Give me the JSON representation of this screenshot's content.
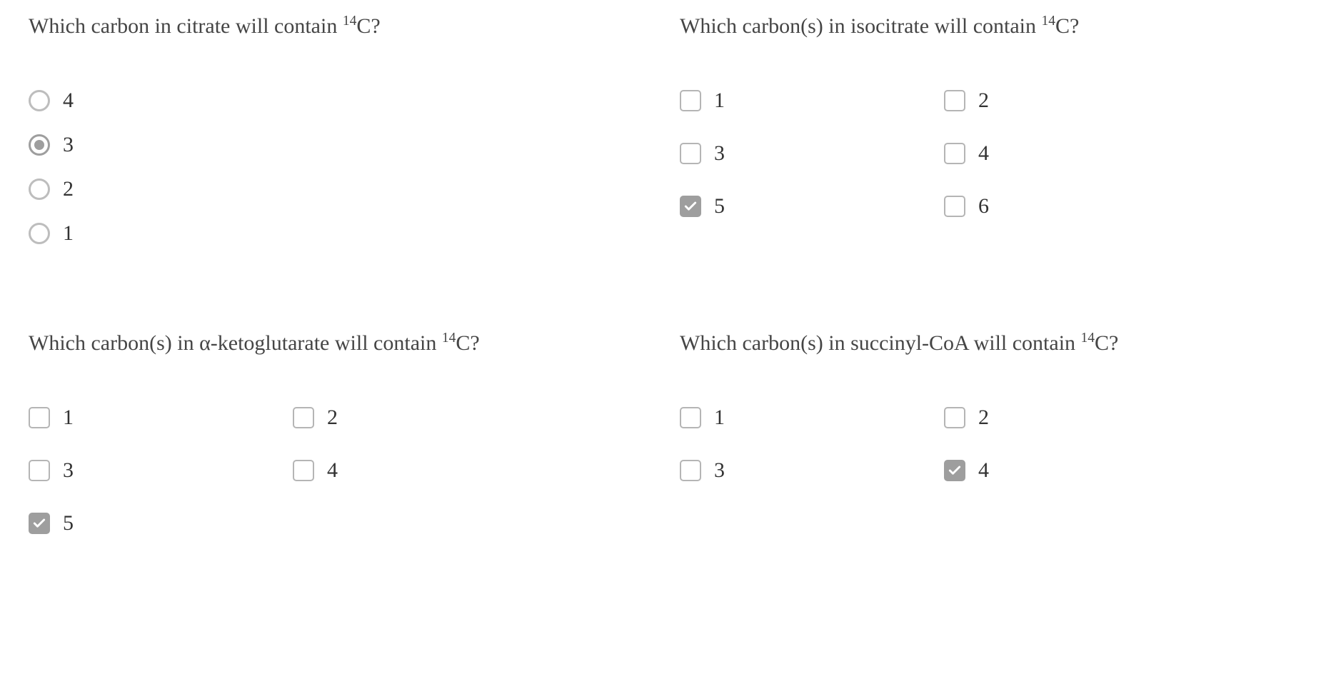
{
  "questions": [
    {
      "text_prefix": "Which carbon in citrate will contain ",
      "sup": "14",
      "text_suffix": "C?",
      "type": "radio",
      "options": [
        {
          "label": "4",
          "selected": false
        },
        {
          "label": "3",
          "selected": true
        },
        {
          "label": "2",
          "selected": false
        },
        {
          "label": "1",
          "selected": false
        }
      ]
    },
    {
      "text_prefix": "Which carbon(s) in isocitrate will contain ",
      "sup": "14",
      "text_suffix": "C?",
      "type": "checkbox",
      "columns": 2,
      "options": [
        {
          "label": "1",
          "selected": false
        },
        {
          "label": "2",
          "selected": false
        },
        {
          "label": "3",
          "selected": false
        },
        {
          "label": "4",
          "selected": false
        },
        {
          "label": "5",
          "selected": true
        },
        {
          "label": "6",
          "selected": false
        }
      ]
    },
    {
      "text_prefix": "Which carbon(s) in α-ketoglutarate will contain ",
      "sup": "14",
      "text_suffix": "C?",
      "type": "checkbox",
      "columns": 2,
      "options": [
        {
          "label": "1",
          "selected": false
        },
        {
          "label": "2",
          "selected": false
        },
        {
          "label": "3",
          "selected": false
        },
        {
          "label": "4",
          "selected": false
        },
        {
          "label": "5",
          "selected": true
        }
      ]
    },
    {
      "text_prefix": "Which carbon(s) in succinyl-CoA will contain ",
      "sup": "14",
      "text_suffix": "C?",
      "type": "checkbox",
      "columns": 2,
      "options": [
        {
          "label": "1",
          "selected": false
        },
        {
          "label": "2",
          "selected": false
        },
        {
          "label": "3",
          "selected": false
        },
        {
          "label": "4",
          "selected": true
        }
      ]
    }
  ],
  "colors": {
    "text": "#454545",
    "control_border": "#b5b5b5",
    "control_selected": "#9e9e9e",
    "background": "#ffffff"
  }
}
